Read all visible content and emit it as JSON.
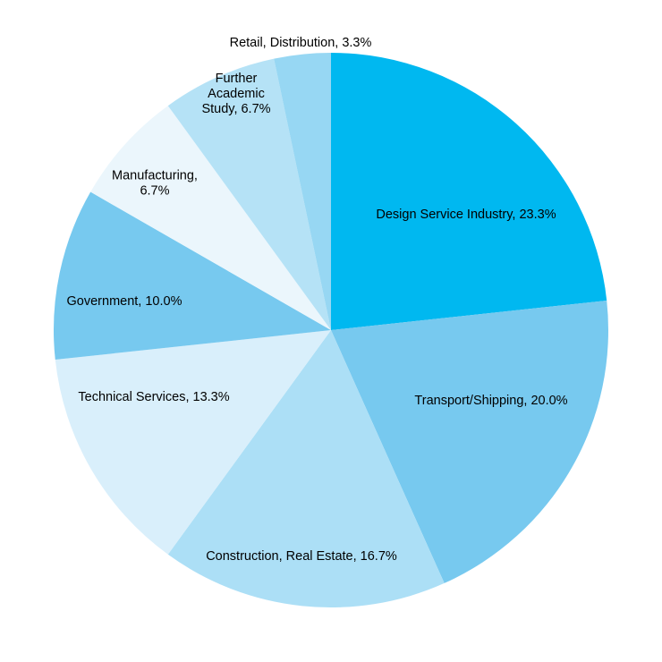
{
  "chart_data": {
    "type": "pie",
    "title": "",
    "start_angle": "12 o'clock",
    "direction": "clockwise",
    "slices": [
      {
        "name": "Design Service Industry",
        "value": 23.3,
        "label": "Design Service Industry,  23.3%",
        "color": "#00b8f0"
      },
      {
        "name": "Transport/Shipping",
        "value": 20.0,
        "label": "Transport/Shipping,  20.0%",
        "color": "#77c9ef"
      },
      {
        "name": "Construction, Real Estate",
        "value": 16.7,
        "label": "Construction,  Real Estate, 16.7%",
        "color": "#acdff6"
      },
      {
        "name": "Technical Services",
        "value": 13.3,
        "label": "Technical  Services, 13.3%",
        "color": "#d9effb"
      },
      {
        "name": "Government",
        "value": 10.0,
        "label": "Government,  10.0%",
        "color": "#77c9ef"
      },
      {
        "name": "Manufacturing",
        "value": 6.7,
        "label": "Manufacturing,\n6.7%",
        "color": "#ebf6fc"
      },
      {
        "name": "Further Academic Study",
        "value": 6.7,
        "label": "Further\nAcademic\nStudy, 6.7%",
        "color": "#b5e2f6"
      },
      {
        "name": "Retail, Distribution",
        "value": 3.3,
        "label": "Retail,  Distribution, 3.3%",
        "color": "#97d7f3"
      }
    ]
  }
}
